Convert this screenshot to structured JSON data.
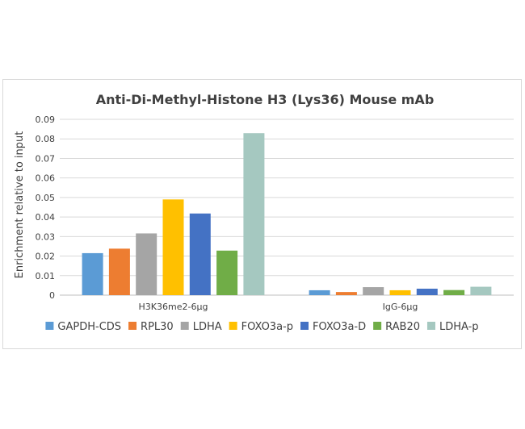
{
  "chart_data": {
    "type": "bar",
    "title": "Anti-Di-Methyl-Histone H3 (Lys36) Mouse mAb",
    "xlabel": "",
    "ylabel": "Enrichment relative to input",
    "ylim": [
      0,
      0.09
    ],
    "yticks": [
      "0",
      "0.01",
      "0.02",
      "0.03",
      "0.04",
      "0.05",
      "0.06",
      "0.07",
      "0.08",
      "0.09"
    ],
    "grid": true,
    "legend": "bottom",
    "categories": [
      "H3K36me2-6µg",
      "IgG-6µg"
    ],
    "series": [
      {
        "name": "GAPDH-CDS",
        "color": "#5b9bd5",
        "values": [
          0.0215,
          0.0025
        ]
      },
      {
        "name": "RPL30",
        "color": "#ed7d31",
        "values": [
          0.0238,
          0.0016
        ]
      },
      {
        "name": "LDHA",
        "color": "#a5a5a5",
        "values": [
          0.0316,
          0.0041
        ]
      },
      {
        "name": "FOXO3a-p",
        "color": "#ffc000",
        "values": [
          0.049,
          0.0025
        ]
      },
      {
        "name": "FOXO3a-D",
        "color": "#4472c4",
        "values": [
          0.0418,
          0.0033
        ]
      },
      {
        "name": "RAB20",
        "color": "#70ad47",
        "values": [
          0.0228,
          0.0026
        ]
      },
      {
        "name": "LDHA-p",
        "color": "#a5c8c0",
        "values": [
          0.0829,
          0.0043
        ]
      }
    ]
  }
}
